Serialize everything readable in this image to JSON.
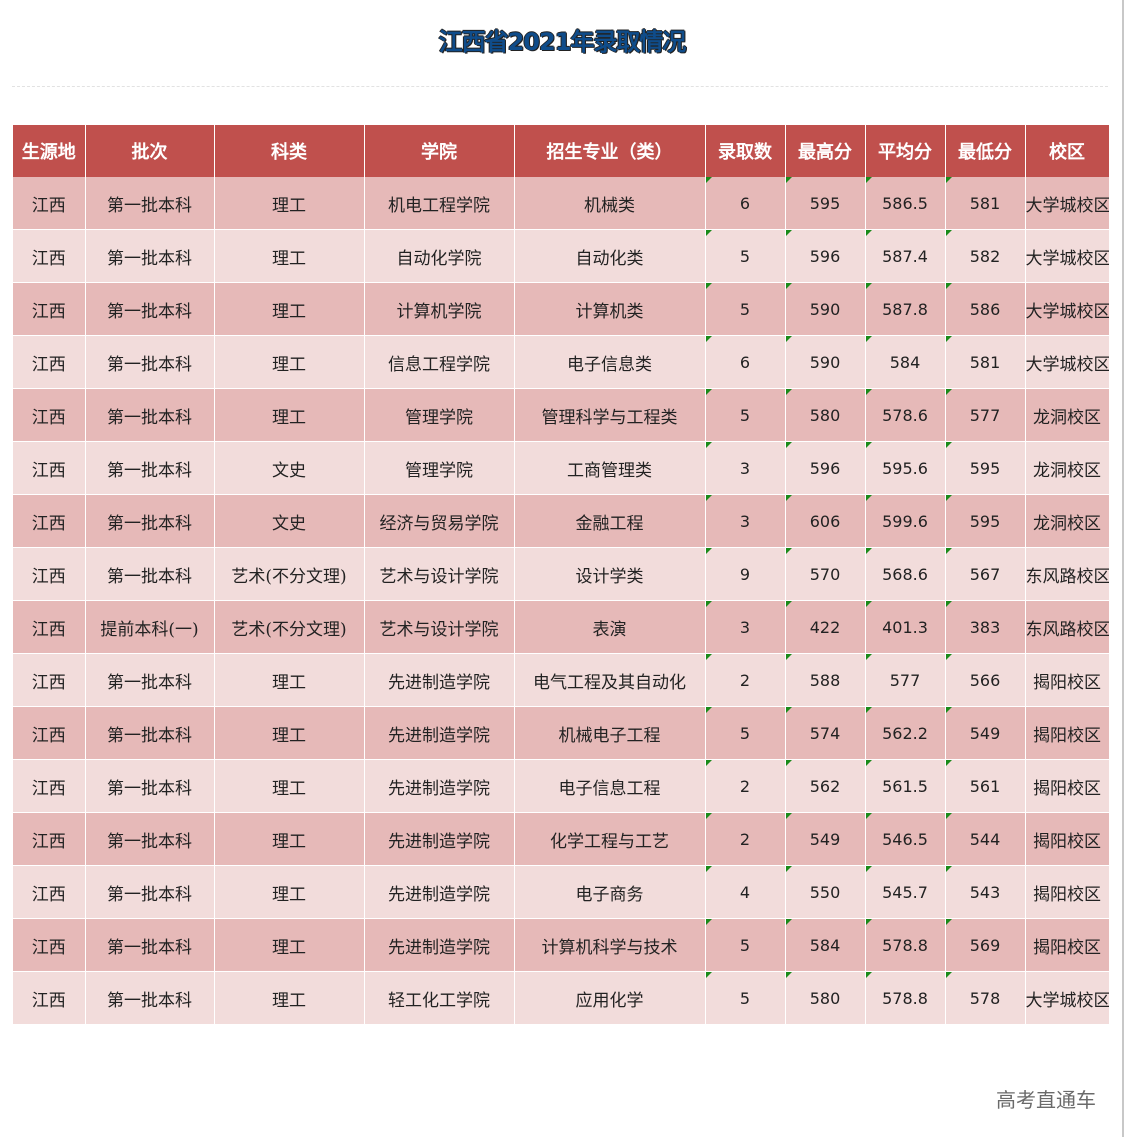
{
  "title": "江西省2021年录取情况",
  "table": {
    "headers": [
      "生源地",
      "批次",
      "科类",
      "学院",
      "招生专业（类）",
      "录取数",
      "最高分",
      "平均分",
      "最低分",
      "校区"
    ],
    "rows": [
      [
        "江西",
        "第一批本科",
        "理工",
        "机电工程学院",
        "机械类",
        "6",
        "595",
        "586.5",
        "581",
        "大学城校区"
      ],
      [
        "江西",
        "第一批本科",
        "理工",
        "自动化学院",
        "自动化类",
        "5",
        "596",
        "587.4",
        "582",
        "大学城校区"
      ],
      [
        "江西",
        "第一批本科",
        "理工",
        "计算机学院",
        "计算机类",
        "5",
        "590",
        "587.8",
        "586",
        "大学城校区"
      ],
      [
        "江西",
        "第一批本科",
        "理工",
        "信息工程学院",
        "电子信息类",
        "6",
        "590",
        "584",
        "581",
        "大学城校区"
      ],
      [
        "江西",
        "第一批本科",
        "理工",
        "管理学院",
        "管理科学与工程类",
        "5",
        "580",
        "578.6",
        "577",
        "龙洞校区"
      ],
      [
        "江西",
        "第一批本科",
        "文史",
        "管理学院",
        "工商管理类",
        "3",
        "596",
        "595.6",
        "595",
        "龙洞校区"
      ],
      [
        "江西",
        "第一批本科",
        "文史",
        "经济与贸易学院",
        "金融工程",
        "3",
        "606",
        "599.6",
        "595",
        "龙洞校区"
      ],
      [
        "江西",
        "第一批本科",
        "艺术(不分文理)",
        "艺术与设计学院",
        "设计学类",
        "9",
        "570",
        "568.6",
        "567",
        "东风路校区"
      ],
      [
        "江西",
        "提前本科(一)",
        "艺术(不分文理)",
        "艺术与设计学院",
        "表演",
        "3",
        "422",
        "401.3",
        "383",
        "东风路校区"
      ],
      [
        "江西",
        "第一批本科",
        "理工",
        "先进制造学院",
        "电气工程及其自动化",
        "2",
        "588",
        "577",
        "566",
        "揭阳校区"
      ],
      [
        "江西",
        "第一批本科",
        "理工",
        "先进制造学院",
        "机械电子工程",
        "5",
        "574",
        "562.2",
        "549",
        "揭阳校区"
      ],
      [
        "江西",
        "第一批本科",
        "理工",
        "先进制造学院",
        "电子信息工程",
        "2",
        "562",
        "561.5",
        "561",
        "揭阳校区"
      ],
      [
        "江西",
        "第一批本科",
        "理工",
        "先进制造学院",
        "化学工程与工艺",
        "2",
        "549",
        "546.5",
        "544",
        "揭阳校区"
      ],
      [
        "江西",
        "第一批本科",
        "理工",
        "先进制造学院",
        "电子商务",
        "4",
        "550",
        "545.7",
        "543",
        "揭阳校区"
      ],
      [
        "江西",
        "第一批本科",
        "理工",
        "先进制造学院",
        "计算机科学与技术",
        "5",
        "584",
        "578.8",
        "569",
        "揭阳校区"
      ],
      [
        "江西",
        "第一批本科",
        "理工",
        "轻工化工学院",
        "应用化学",
        "5",
        "580",
        "578.8",
        "578",
        "大学城校区"
      ]
    ]
  },
  "watermark": "高考直通车",
  "colors": {
    "header_bg": "#c0504d",
    "row_dark": "#e6b9b8",
    "row_light": "#f2dcdb",
    "title_text": "#0f4c8a",
    "corner_mark": "#1a8a1a"
  }
}
